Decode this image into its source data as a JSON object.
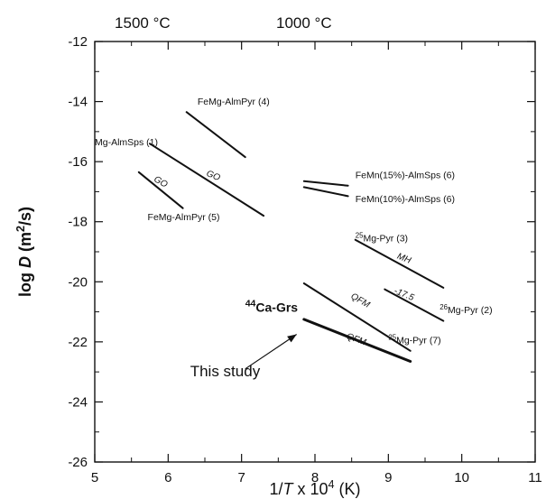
{
  "chart_data": {
    "type": "line",
    "xlabel": "1/T x 10^4 (K)",
    "ylabel": "log D (m^2/s)",
    "xlim": [
      5,
      11
    ],
    "ylim": [
      -26,
      -12
    ],
    "x_ticks": [
      5,
      6,
      7,
      8,
      9,
      10,
      11
    ],
    "y_ticks": [
      -12,
      -14,
      -16,
      -18,
      -20,
      -22,
      -24,
      -26
    ],
    "top_axis_labels": [
      {
        "text": "1500 °C",
        "x": 5.65
      },
      {
        "text": "1000 °C",
        "x": 7.85
      }
    ],
    "grid": false,
    "series": [
      {
        "name": "FeMg-AlmPyr (4)",
        "points": [
          [
            6.25,
            -14.35
          ],
          [
            7.05,
            -15.85
          ]
        ],
        "weight": "normal"
      },
      {
        "name": "Mg-AlmSps (1)",
        "points": [
          [
            5.75,
            -15.4
          ],
          [
            7.3,
            -17.8
          ]
        ],
        "weight": "normal"
      },
      {
        "name": "FeMg-AlmPyr (5)",
        "points": [
          [
            5.6,
            -16.35
          ],
          [
            6.2,
            -17.55
          ]
        ],
        "weight": "normal"
      },
      {
        "name": "FeMn(15%)-AlmSps (6)",
        "points": [
          [
            7.85,
            -16.65
          ],
          [
            8.45,
            -16.8
          ]
        ],
        "weight": "normal"
      },
      {
        "name": "FeMn(10%)-AlmSps (6)",
        "points": [
          [
            7.85,
            -16.85
          ],
          [
            8.45,
            -17.15
          ]
        ],
        "weight": "normal"
      },
      {
        "name": "25Mg-Pyr (3)",
        "points": [
          [
            8.55,
            -18.6
          ],
          [
            9.75,
            -20.2
          ]
        ],
        "weight": "normal"
      },
      {
        "name": "26Mg-Pyr (2)",
        "points": [
          [
            8.95,
            -20.25
          ],
          [
            9.75,
            -21.3
          ]
        ],
        "weight": "normal"
      },
      {
        "name": "25Mg-Pyr (7)",
        "points": [
          [
            7.85,
            -20.05
          ],
          [
            9.3,
            -22.3
          ]
        ],
        "weight": "normal"
      },
      {
        "name": "44Ca-Grs",
        "points": [
          [
            7.85,
            -21.25
          ],
          [
            9.3,
            -22.65
          ]
        ],
        "weight": "bold"
      }
    ],
    "series_labels": [
      {
        "text": "FeMg-AlmPyr (4)",
        "x": 6.4,
        "y": -14.1
      },
      {
        "text": "Mg-AlmSps (1)",
        "x": 5.0,
        "y": -15.45
      },
      {
        "text": "FeMg-AlmPyr (5)",
        "x": 5.72,
        "y": -17.95
      },
      {
        "text": "FeMn(15%)-AlmSps (6)",
        "x": 8.55,
        "y": -16.55
      },
      {
        "text": "FeMn(10%)-AlmSps (6)",
        "x": 8.55,
        "y": -17.35
      },
      {
        "text": "25Mg-Pyr (3)",
        "x": 8.55,
        "y": -18.65
      },
      {
        "text": "26Mg-Pyr (2)",
        "x": 9.7,
        "y": -21.05
      },
      {
        "text": "25Mg-Pyr (7)",
        "x": 9.0,
        "y": -22.05
      }
    ],
    "line_annotations": [
      {
        "text": "GO",
        "x": 6.6,
        "y": -16.55,
        "angle": 23
      },
      {
        "text": "GO",
        "x": 5.88,
        "y": -16.75,
        "angle": 30
      },
      {
        "text": "MH",
        "x": 9.2,
        "y": -19.3,
        "angle": 22
      },
      {
        "text": "-17.5",
        "x": 9.2,
        "y": -20.5,
        "angle": 22
      },
      {
        "text": "QFM",
        "x": 8.6,
        "y": -20.7,
        "angle": 30
      },
      {
        "text": "QFM",
        "x": 8.55,
        "y": -22.0,
        "angle": 20
      }
    ],
    "study_label": {
      "text": "44Ca-Grs",
      "x": 7.05,
      "y": -21.0
    },
    "arrow_annotation": {
      "text": "This study",
      "text_x": 6.3,
      "text_y": -23.15,
      "from": [
        7.05,
        -22.9
      ],
      "to": [
        7.75,
        -21.75
      ]
    }
  }
}
